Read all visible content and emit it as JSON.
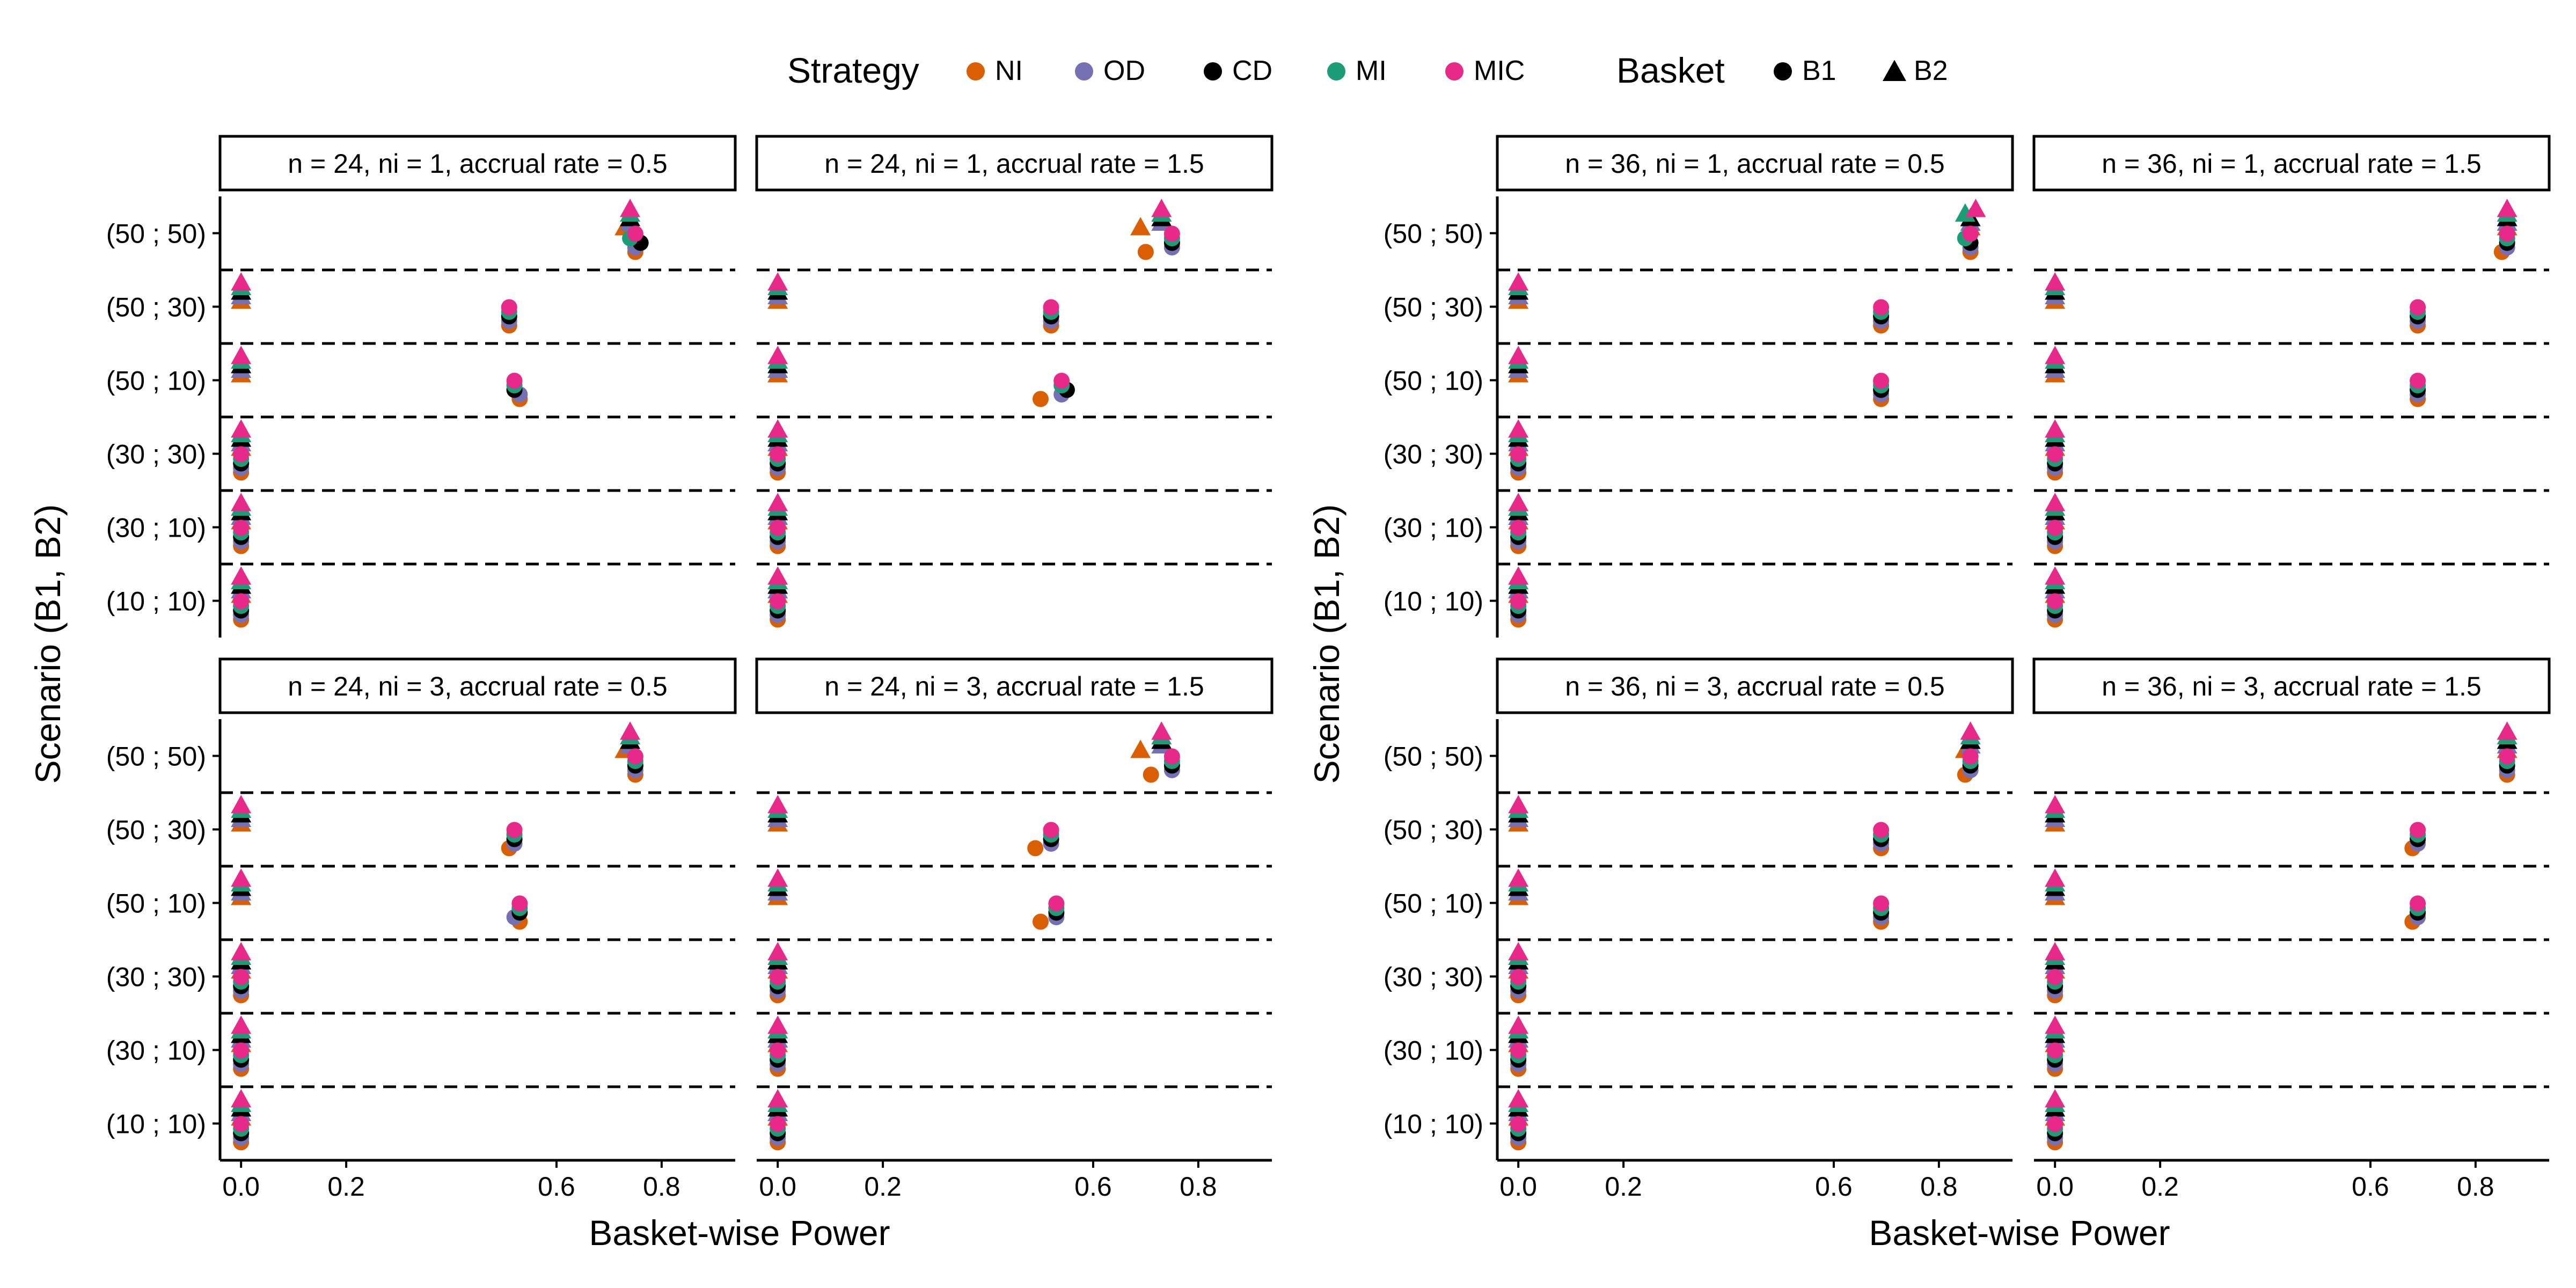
{
  "legend": {
    "strategy_title": "Strategy",
    "basket_title": "Basket",
    "strategies": [
      {
        "name": "NI",
        "color": "#D95F02"
      },
      {
        "name": "OD",
        "color": "#7570B3"
      },
      {
        "name": "CD",
        "color": "#000000"
      },
      {
        "name": "MI",
        "color": "#1B9E77"
      },
      {
        "name": "MIC",
        "color": "#E7298A"
      }
    ],
    "baskets": [
      {
        "name": "B1",
        "shape": "circle"
      },
      {
        "name": "B2",
        "shape": "triangle"
      }
    ]
  },
  "chart_data": {
    "type": "scatter",
    "xlabel": "Basket-wise Power",
    "ylabel": "Scenario (B1, B2)",
    "xlim": [
      -0.04,
      0.94
    ],
    "xticks": [
      0.0,
      0.2,
      0.6,
      0.8
    ],
    "xtick_labels": [
      "0.0",
      "0.2",
      "0.6",
      "0.8"
    ],
    "scenarios": [
      "(10 ; 10)",
      "(30 ; 10)",
      "(30 ; 30)",
      "(50 ; 10)",
      "(50 ; 30)",
      "(50 ; 50)"
    ],
    "scenario_separators": "dashed line between scenarios",
    "strategy_order": [
      "NI",
      "OD",
      "CD",
      "MI",
      "MIC"
    ],
    "facets": [
      {
        "title": "n = 24, ni = 1, accrual rate = 0.5",
        "power": {
          "(10 ; 10)": [
            0,
            0
          ],
          "(30 ; 10)": [
            0,
            0
          ],
          "(30 ; 30)": [
            0,
            0
          ],
          "(50 ; 10)": [
            0.52,
            0
          ],
          "(50 ; 30)": [
            0.51,
            0
          ],
          "(50 ; 50)": [
            0.75,
            0.74
          ]
        },
        "shift": {
          "(50 ; 10)": {
            "NI": [
              0.01,
              0
            ],
            "OD": [
              0.01,
              0
            ]
          },
          "(50 ; 50)": {
            "MI": [
              -0.01,
              0
            ],
            "CD": [
              0.01,
              0
            ],
            "NI": [
              0,
              -0.01
            ]
          }
        }
      },
      {
        "title": "n = 24, ni = 1, accrual rate = 1.5",
        "power": {
          "(10 ; 10)": [
            0,
            0
          ],
          "(30 ; 10)": [
            0,
            0
          ],
          "(30 ; 30)": [
            0,
            0
          ],
          "(50 ; 10)": [
            0.54,
            0
          ],
          "(50 ; 30)": [
            0.52,
            0
          ],
          "(50 ; 50)": [
            0.75,
            0.73
          ]
        },
        "shift": {
          "(50 ; 10)": {
            "NI": [
              -0.04,
              0
            ],
            "CD": [
              0.01,
              0
            ]
          },
          "(50 ; 50)": {
            "NI": [
              -0.05,
              -0.04
            ]
          }
        }
      },
      {
        "title": "n = 36, ni = 1, accrual rate = 0.5",
        "power": {
          "(10 ; 10)": [
            0,
            0
          ],
          "(30 ; 10)": [
            0,
            0
          ],
          "(30 ; 30)": [
            0,
            0
          ],
          "(50 ; 10)": [
            0.69,
            0
          ],
          "(50 ; 30)": [
            0.69,
            0
          ],
          "(50 ; 50)": [
            0.86,
            0.86
          ]
        },
        "shift": {
          "(50 ; 50)": {
            "MIC": [
              0,
              0.01
            ],
            "MI": [
              -0.01,
              -0.01
            ]
          }
        }
      },
      {
        "title": "n = 36, ni = 1, accrual rate = 1.5",
        "power": {
          "(10 ; 10)": [
            0,
            0
          ],
          "(30 ; 10)": [
            0,
            0
          ],
          "(30 ; 30)": [
            0,
            0
          ],
          "(50 ; 10)": [
            0.69,
            0
          ],
          "(50 ; 30)": [
            0.69,
            0
          ],
          "(50 ; 50)": [
            0.86,
            0.86
          ]
        },
        "shift": {
          "(50 ; 50)": {
            "NI": [
              -0.01,
              0
            ]
          }
        }
      },
      {
        "title": "n = 24, ni = 3, accrual rate = 0.5",
        "power": {
          "(10 ; 10)": [
            0,
            0
          ],
          "(30 ; 10)": [
            0,
            0
          ],
          "(30 ; 30)": [
            0,
            0
          ],
          "(50 ; 10)": [
            0.53,
            0
          ],
          "(50 ; 30)": [
            0.52,
            0
          ],
          "(50 ; 50)": [
            0.75,
            0.74
          ]
        },
        "shift": {
          "(50 ; 30)": {
            "NI": [
              -0.01,
              0
            ]
          },
          "(50 ; 10)": {
            "OD": [
              -0.01,
              0
            ]
          },
          "(50 ; 50)": {
            "NI": [
              0,
              -0.01
            ]
          }
        }
      },
      {
        "title": "n = 24, ni = 3, accrual rate = 1.5",
        "power": {
          "(10 ; 10)": [
            0,
            0
          ],
          "(30 ; 10)": [
            0,
            0
          ],
          "(30 ; 30)": [
            0,
            0
          ],
          "(50 ; 10)": [
            0.53,
            0
          ],
          "(50 ; 30)": [
            0.52,
            0
          ],
          "(50 ; 50)": [
            0.75,
            0.73
          ]
        },
        "shift": {
          "(50 ; 10)": {
            "NI": [
              -0.03,
              0
            ]
          },
          "(50 ; 30)": {
            "NI": [
              -0.03,
              0
            ]
          },
          "(50 ; 50)": {
            "NI": [
              -0.04,
              -0.04
            ]
          }
        }
      },
      {
        "title": "n = 36, ni = 3, accrual rate = 0.5",
        "power": {
          "(10 ; 10)": [
            0,
            0
          ],
          "(30 ; 10)": [
            0,
            0
          ],
          "(30 ; 30)": [
            0,
            0
          ],
          "(50 ; 10)": [
            0.69,
            0
          ],
          "(50 ; 30)": [
            0.69,
            0
          ],
          "(50 ; 50)": [
            0.86,
            0.86
          ]
        },
        "shift": {
          "(50 ; 50)": {
            "NI": [
              -0.01,
              -0.01
            ]
          }
        }
      },
      {
        "title": "n = 36, ni = 3, accrual rate = 1.5",
        "power": {
          "(10 ; 10)": [
            0,
            0
          ],
          "(30 ; 10)": [
            0,
            0
          ],
          "(30 ; 30)": [
            0,
            0
          ],
          "(50 ; 10)": [
            0.69,
            0
          ],
          "(50 ; 30)": [
            0.69,
            0
          ],
          "(50 ; 50)": [
            0.86,
            0.86
          ]
        },
        "shift": {
          "(50 ; 30)": {
            "NI": [
              -0.01,
              0
            ]
          },
          "(50 ; 10)": {
            "NI": [
              -0.01,
              0
            ]
          }
        }
      }
    ]
  }
}
